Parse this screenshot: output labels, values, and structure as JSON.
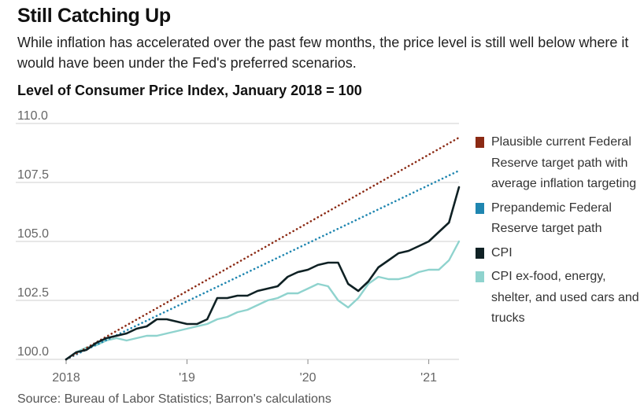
{
  "header": {
    "title": "Still Catching Up",
    "subtitle": "While inflation has accelerated over the past few months, the price level is still well below where it would have been under the Fed's preferred scenarios."
  },
  "footer": {
    "source": "Source: Bureau of Labor Statistics; Barron's calculations"
  },
  "colors": {
    "plausible": "#8b2a14",
    "prepandemic": "#1f86b0",
    "cpi": "#0f2124",
    "core": "#8fd3ce",
    "grid": "#cfcfcf",
    "axis_text": "#666666"
  },
  "chart_data": {
    "type": "line",
    "title": "Level of Consumer Price Index, January 2018 = 100",
    "xlabel": "",
    "ylabel": "",
    "ylim": [
      100,
      110
    ],
    "xlim": [
      2018.0,
      2021.25
    ],
    "yticks": [
      "100.0",
      "102.5",
      "105.0",
      "107.5",
      "110.0"
    ],
    "ytick_values": [
      100,
      102.5,
      105,
      107.5,
      110
    ],
    "xticks": [
      "2018",
      "'19",
      "'20",
      "'21"
    ],
    "xtick_values": [
      2018,
      2019,
      2020,
      2021
    ],
    "grid": true,
    "legend_position": "right",
    "series": [
      {
        "name": "Plausible current Federal Reserve target path with average inflation targeting",
        "style": "dotted",
        "color_key": "plausible",
        "x": [
          2018.0,
          2021.25
        ],
        "values": [
          100.0,
          109.4
        ]
      },
      {
        "name": "Prepandemic Federal Reserve target path",
        "style": "dotted",
        "color_key": "prepandemic",
        "x": [
          2018.0,
          2021.25
        ],
        "values": [
          100.0,
          108.0
        ]
      },
      {
        "name": "CPI",
        "style": "solid",
        "color_key": "cpi",
        "x": [
          2018.0,
          2018.083,
          2018.167,
          2018.25,
          2018.333,
          2018.417,
          2018.5,
          2018.583,
          2018.667,
          2018.75,
          2018.833,
          2018.917,
          2019.0,
          2019.083,
          2019.167,
          2019.25,
          2019.333,
          2019.417,
          2019.5,
          2019.583,
          2019.667,
          2019.75,
          2019.833,
          2019.917,
          2020.0,
          2020.083,
          2020.167,
          2020.25,
          2020.333,
          2020.417,
          2020.5,
          2020.583,
          2020.667,
          2020.75,
          2020.833,
          2020.917,
          2021.0,
          2021.083,
          2021.167,
          2021.25
        ],
        "values": [
          100.0,
          100.3,
          100.4,
          100.7,
          100.9,
          101.0,
          101.1,
          101.3,
          101.4,
          101.7,
          101.7,
          101.6,
          101.5,
          101.5,
          101.7,
          102.6,
          102.6,
          102.7,
          102.7,
          102.9,
          103.0,
          103.1,
          103.5,
          103.7,
          103.8,
          104.0,
          104.1,
          104.1,
          103.2,
          102.9,
          103.3,
          103.9,
          104.2,
          104.5,
          104.6,
          104.8,
          105.0,
          105.4,
          105.8,
          107.3
        ]
      },
      {
        "name": "CPI ex-food, energy, shelter, and used cars and trucks",
        "style": "solid",
        "color_key": "core",
        "x": [
          2018.0,
          2018.083,
          2018.167,
          2018.25,
          2018.333,
          2018.417,
          2018.5,
          2018.583,
          2018.667,
          2018.75,
          2018.833,
          2018.917,
          2019.0,
          2019.083,
          2019.167,
          2019.25,
          2019.333,
          2019.417,
          2019.5,
          2019.583,
          2019.667,
          2019.75,
          2019.833,
          2019.917,
          2020.0,
          2020.083,
          2020.167,
          2020.25,
          2020.333,
          2020.417,
          2020.5,
          2020.583,
          2020.667,
          2020.75,
          2020.833,
          2020.917,
          2021.0,
          2021.083,
          2021.167,
          2021.25
        ],
        "values": [
          100.0,
          100.3,
          100.5,
          100.6,
          100.8,
          100.9,
          100.8,
          100.9,
          101.0,
          101.0,
          101.1,
          101.2,
          101.3,
          101.4,
          101.5,
          101.7,
          101.8,
          102.0,
          102.1,
          102.3,
          102.5,
          102.6,
          102.8,
          102.8,
          103.0,
          103.2,
          103.1,
          102.5,
          102.2,
          102.6,
          103.2,
          103.5,
          103.4,
          103.4,
          103.5,
          103.7,
          103.8,
          103.8,
          104.2,
          105.0
        ]
      }
    ]
  }
}
